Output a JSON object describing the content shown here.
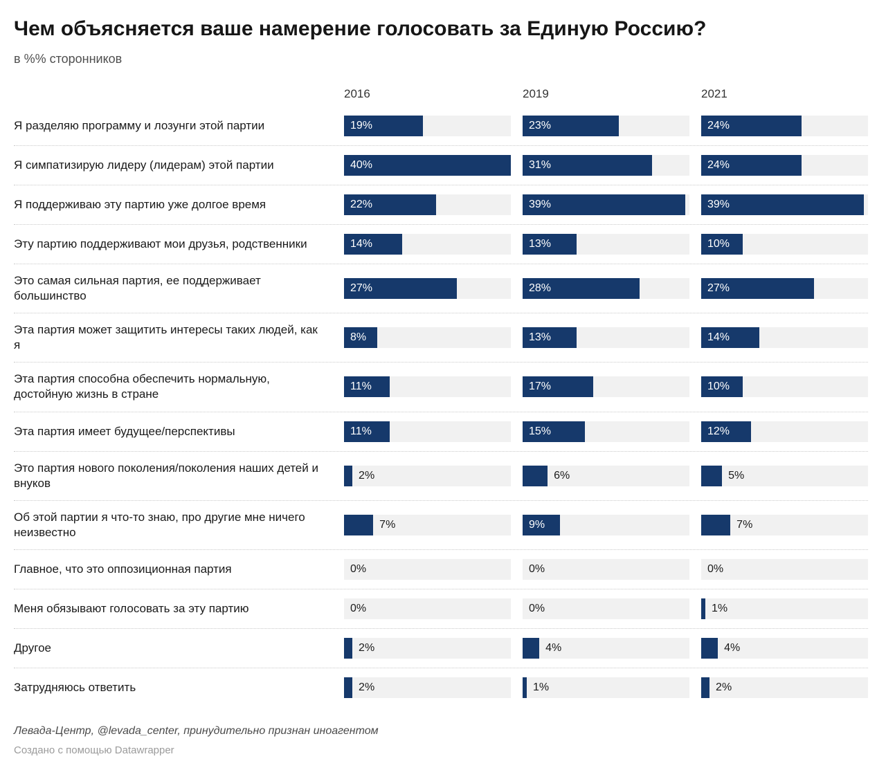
{
  "header": {
    "title": "Чем объясняется ваше намерение голосовать за Единую Россию?",
    "subtitle": "в %% сторонников"
  },
  "chart_data": {
    "type": "bar",
    "layout": "horizontal-grouped-columns",
    "title": "Чем объясняется ваше намерение голосовать за Единую Россию?",
    "subtitle": "в %% сторонников",
    "value_suffix": "%",
    "max_value": 40,
    "inside_label_threshold": 8,
    "bar_color": "#16396b",
    "track_color": "#f1f1f1",
    "categories": [
      "Я разделяю программу и лозунги этой партии",
      "Я симпатизирую лидеру (лидерам) этой партии",
      "Я поддерживаю эту партию уже долгое время",
      "Эту партию поддерживают мои друзья, родственники",
      "Это самая сильная партия, ее поддерживает большинство",
      "Эта партия может защитить интересы таких людей, как я",
      "Эта партия способна обеспечить нормальную, достойную жизнь в стране",
      "Эта партия имеет будущее/перспективы",
      "Это партия нового поколения/поколения наших детей и внуков",
      "Об этой партии я что-то знаю, про другие мне ничего неизвестно",
      "Главное, что это оппозиционная партия",
      "Меня обязывают голосовать за эту партию",
      "Другое",
      "Затрудняюсь ответить"
    ],
    "series": [
      {
        "name": "2016",
        "values": [
          19,
          40,
          22,
          14,
          27,
          8,
          11,
          11,
          2,
          7,
          0,
          0,
          2,
          2
        ]
      },
      {
        "name": "2019",
        "values": [
          23,
          31,
          39,
          13,
          28,
          13,
          17,
          15,
          6,
          9,
          0,
          0,
          4,
          1
        ]
      },
      {
        "name": "2021",
        "values": [
          24,
          24,
          39,
          10,
          27,
          14,
          10,
          12,
          5,
          7,
          0,
          1,
          4,
          2
        ]
      }
    ]
  },
  "footer": {
    "source": "Левада-Центр, @levada_center, принудительно признан иноагентом",
    "attribution": "Создано с помощью Datawrapper"
  }
}
